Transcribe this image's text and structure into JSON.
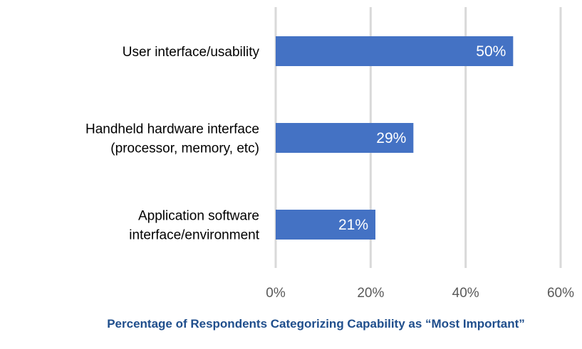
{
  "chart_data": {
    "type": "bar",
    "orientation": "horizontal",
    "categories": [
      [
        "User interface/usability"
      ],
      [
        "Handheld hardware interface",
        "(processor, memory, etc)"
      ],
      [
        "Application software",
        "interface/environment"
      ]
    ],
    "values": [
      50,
      29,
      21
    ],
    "data_labels": [
      "50%",
      "29%",
      "21%"
    ],
    "xlabel": "Percentage of Respondents Categorizing Capability as “Most Important”",
    "ylabel": "",
    "xlim": [
      0,
      60
    ],
    "xticks": [
      0,
      20,
      40,
      60
    ],
    "xtick_labels": [
      "0%",
      "20%",
      "40%",
      "60%"
    ],
    "grid": "vertical",
    "bar_color": "#4472c4",
    "grid_color": "#d9d9d9",
    "label_color": "#ffffff",
    "title_color": "#1f4e8c"
  }
}
